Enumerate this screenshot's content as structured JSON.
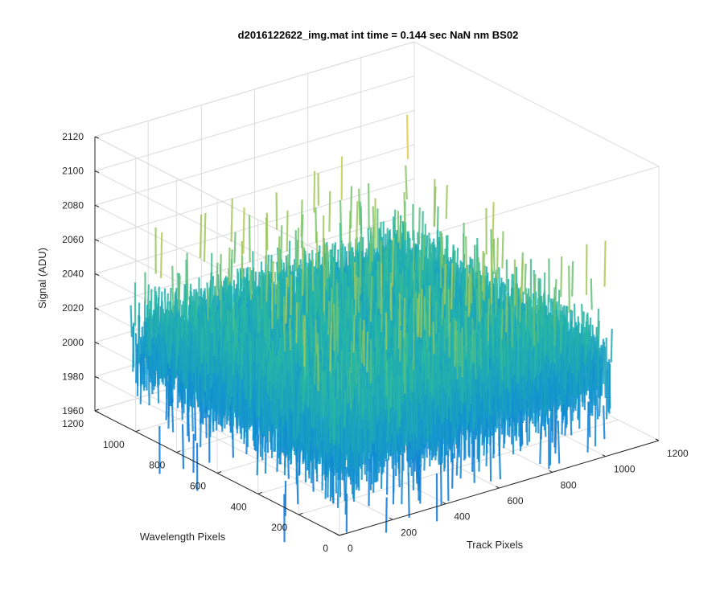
{
  "chart_data": {
    "type": "surface",
    "title": "d2016122622_img.mat int time = 0.144 sec  NaN nm BS02",
    "xlabel": "Track Pixels",
    "ylabel": "Wavelength Pixels",
    "zlabel": "Signal (ADU)",
    "xlim": [
      0,
      1200
    ],
    "ylim": [
      0,
      1200
    ],
    "zlim": [
      1960,
      2120
    ],
    "x_ticks": [
      0,
      200,
      400,
      600,
      800,
      1000,
      1200
    ],
    "y_ticks": [
      0,
      200,
      400,
      600,
      800,
      1000,
      1200
    ],
    "z_ticks": [
      1960,
      1980,
      2000,
      2020,
      2040,
      2060,
      2080,
      2100,
      2120
    ],
    "data_extent": {
      "x": [
        0,
        1024
      ],
      "y": [
        0,
        1024
      ]
    },
    "signal_mean": 2022,
    "signal_range": [
      1965,
      2118
    ],
    "grid": true,
    "colormap": "parula",
    "colors": {
      "low": "#0c76d8",
      "mid": "#27b7a3",
      "high": "#c9cf4e",
      "axis": "#262626",
      "grid": "#dcdcdc"
    }
  }
}
